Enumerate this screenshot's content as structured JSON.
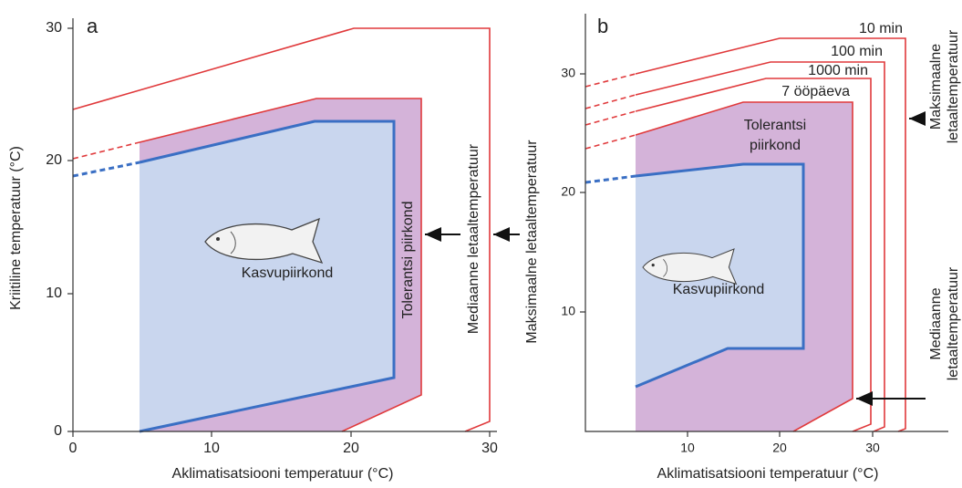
{
  "panels": [
    {
      "letter": "a",
      "x_axis_label": "Aklimatisatsiooni temperatuur (°C)",
      "y_axis_label": "Kriitiline temperatuur (°C)",
      "x_ticks": [
        0,
        10,
        20,
        30
      ],
      "y_ticks": [
        0,
        10,
        20,
        30
      ],
      "growth_label": "Kasvupiirkond",
      "tolerance_label": [
        "Tolerantsi piirkond"
      ],
      "median_label": [
        "Mediaanne letaaltemperatuur"
      ],
      "max_label": [
        "Maksimaalne letaaltemperatuur"
      ]
    },
    {
      "letter": "b",
      "x_axis_label": "Aklimatisatsiooni temperatuur (°C)",
      "x_ticks": [
        10,
        20,
        30
      ],
      "y_ticks": [
        10,
        20,
        30
      ],
      "curve_labels": [
        "10 min",
        "100 min",
        "1000 min",
        "7 ööpäeva"
      ],
      "growth_label": "Kasvupiirkond",
      "tolerance_label": [
        "Tolerantsi",
        "piirkond"
      ],
      "median_label": [
        "Mediaanne",
        "letaaltemperatuur"
      ],
      "max_label": [
        "Maksimaalne",
        "letaaltemperatuur"
      ]
    }
  ]
}
